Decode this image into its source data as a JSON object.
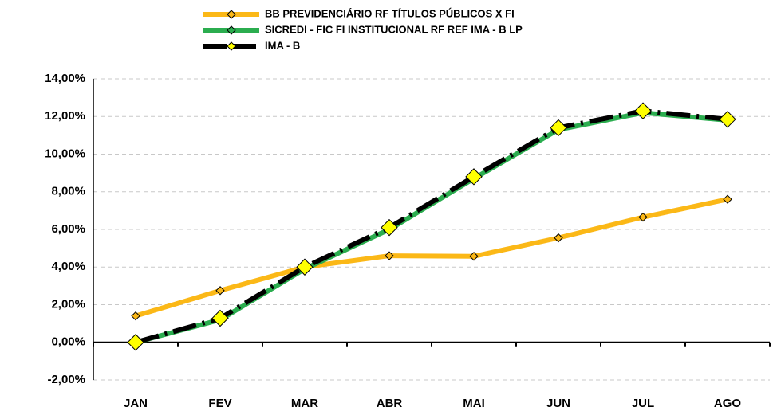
{
  "chart_data": {
    "type": "line",
    "categories": [
      "JAN",
      "FEV",
      "MAR",
      "ABR",
      "MAI",
      "JUN",
      "JUL",
      "AGO"
    ],
    "series": [
      {
        "name": "BB PREVIDENCIÁRIO RF TÍTULOS PÚBLICOS X FI",
        "color": "#fbb817",
        "values": [
          1.4,
          2.75,
          4.0,
          4.6,
          4.57,
          5.55,
          6.65,
          7.6
        ]
      },
      {
        "name": "SICREDI - FIC FI INSTITUCIONAL RF REF IMA - B LP",
        "color": "#2bad4f",
        "values": [
          0.0,
          1.2,
          3.9,
          6.0,
          8.7,
          11.3,
          12.2,
          11.8
        ]
      },
      {
        "name": "IMA - B",
        "color": "#000000",
        "values": [
          0.0,
          1.28,
          4.0,
          6.1,
          8.8,
          11.4,
          12.3,
          11.85
        ]
      }
    ],
    "ylim": [
      -2,
      14
    ],
    "yticks": [
      {
        "value": -2,
        "label": "-2,00%"
      },
      {
        "value": 0,
        "label": "0,00%"
      },
      {
        "value": 2,
        "label": "2,00%"
      },
      {
        "value": 4,
        "label": "4,00%"
      },
      {
        "value": 6,
        "label": "6,00%"
      },
      {
        "value": 8,
        "label": "8,00%"
      },
      {
        "value": 10,
        "label": "10,00%"
      },
      {
        "value": 12,
        "label": "12,00%"
      },
      {
        "value": 14,
        "label": "14,00%"
      }
    ],
    "grid": true
  }
}
